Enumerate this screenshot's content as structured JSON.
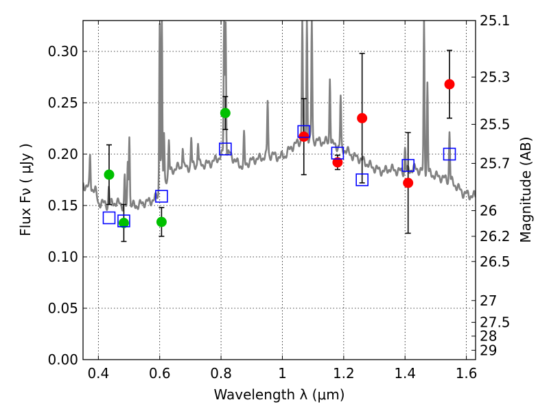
{
  "chart_data": {
    "type": "scatter",
    "title": "",
    "xlabel": "Wavelength  λ (μm)",
    "ylabel": "Flux  Fν  ( μJy )",
    "y2label": "Magnitude (AB)",
    "xlim": [
      0.35,
      1.63
    ],
    "ylim": [
      0.0,
      0.33
    ],
    "grid": true,
    "x_ticks": [
      {
        "value": 0.4,
        "label": "0.4"
      },
      {
        "value": 0.6,
        "label": "0.6"
      },
      {
        "value": 0.8,
        "label": "0.8"
      },
      {
        "value": 1.0,
        "label": "1"
      },
      {
        "value": 1.2,
        "label": "1.2"
      },
      {
        "value": 1.4,
        "label": "1.4"
      },
      {
        "value": 1.6,
        "label": "1.6"
      }
    ],
    "y_ticks": [
      {
        "value": 0.0,
        "label": "0.00"
      },
      {
        "value": 0.05,
        "label": "0.05"
      },
      {
        "value": 0.1,
        "label": "0.10"
      },
      {
        "value": 0.15,
        "label": "0.15"
      },
      {
        "value": 0.2,
        "label": "0.20"
      },
      {
        "value": 0.25,
        "label": "0.25"
      },
      {
        "value": 0.3,
        "label": "0.30"
      }
    ],
    "y2_ticks": [
      {
        "flux": 0.33,
        "label": "25.1"
      },
      {
        "flux": 0.275,
        "label": "25.3"
      },
      {
        "flux": 0.229,
        "label": "25.5"
      },
      {
        "flux": 0.191,
        "label": "25.7"
      },
      {
        "flux": 0.145,
        "label": "26"
      },
      {
        "flux": 0.12,
        "label": "26.2"
      },
      {
        "flux": 0.0955,
        "label": "26.5"
      },
      {
        "flux": 0.0575,
        "label": "27"
      },
      {
        "flux": 0.0363,
        "label": "27.5"
      },
      {
        "flux": 0.0229,
        "label": "28"
      },
      {
        "flux": 0.0091,
        "label": "29"
      }
    ],
    "series": [
      {
        "name": "green",
        "color": "#00c000",
        "marker": "circle",
        "points": [
          {
            "x": 0.435,
            "y": 0.18,
            "err": 0.029
          },
          {
            "x": 0.483,
            "y": 0.133,
            "err": 0.018
          },
          {
            "x": 0.606,
            "y": 0.134,
            "err": 0.014
          },
          {
            "x": 0.814,
            "y": 0.24,
            "err": 0.016
          }
        ]
      },
      {
        "name": "red",
        "color": "#ff0000",
        "marker": "circle",
        "points": [
          {
            "x": 1.07,
            "y": 0.217,
            "err": 0.037
          },
          {
            "x": 1.18,
            "y": 0.192,
            "err": 0.007
          },
          {
            "x": 1.26,
            "y": 0.235,
            "err": 0.063
          },
          {
            "x": 1.41,
            "y": 0.172,
            "err": 0.049
          },
          {
            "x": 1.545,
            "y": 0.268,
            "err": 0.033
          }
        ]
      },
      {
        "name": "model",
        "color": "#0000ff",
        "marker": "square",
        "points": [
          {
            "x": 0.435,
            "y": 0.138
          },
          {
            "x": 0.483,
            "y": 0.135
          },
          {
            "x": 0.606,
            "y": 0.159
          },
          {
            "x": 0.814,
            "y": 0.205
          },
          {
            "x": 1.07,
            "y": 0.222
          },
          {
            "x": 1.18,
            "y": 0.201
          },
          {
            "x": 1.26,
            "y": 0.175
          },
          {
            "x": 1.41,
            "y": 0.189
          },
          {
            "x": 1.545,
            "y": 0.2
          }
        ]
      }
    ],
    "spectrum": {
      "color": "#808080",
      "continuum": [
        [
          0.35,
          0.17
        ],
        [
          0.37,
          0.168
        ],
        [
          0.39,
          0.165
        ],
        [
          0.4,
          0.152
        ],
        [
          0.41,
          0.153
        ],
        [
          0.43,
          0.15
        ],
        [
          0.45,
          0.153
        ],
        [
          0.47,
          0.152
        ],
        [
          0.49,
          0.147
        ],
        [
          0.51,
          0.15
        ],
        [
          0.53,
          0.15
        ],
        [
          0.55,
          0.153
        ],
        [
          0.57,
          0.154
        ],
        [
          0.59,
          0.158
        ],
        [
          0.61,
          0.168
        ],
        [
          0.63,
          0.182
        ],
        [
          0.65,
          0.186
        ],
        [
          0.67,
          0.188
        ],
        [
          0.69,
          0.187
        ],
        [
          0.71,
          0.189
        ],
        [
          0.73,
          0.19
        ],
        [
          0.75,
          0.19
        ],
        [
          0.77,
          0.192
        ],
        [
          0.79,
          0.196
        ],
        [
          0.81,
          0.201
        ],
        [
          0.83,
          0.2
        ],
        [
          0.85,
          0.192
        ],
        [
          0.87,
          0.188
        ],
        [
          0.89,
          0.192
        ],
        [
          0.91,
          0.195
        ],
        [
          0.93,
          0.196
        ],
        [
          0.95,
          0.199
        ],
        [
          0.97,
          0.199
        ],
        [
          0.99,
          0.197
        ],
        [
          1.01,
          0.199
        ],
        [
          1.03,
          0.207
        ],
        [
          1.05,
          0.211
        ],
        [
          1.07,
          0.215
        ],
        [
          1.09,
          0.214
        ],
        [
          1.11,
          0.213
        ],
        [
          1.13,
          0.212
        ],
        [
          1.15,
          0.212
        ],
        [
          1.17,
          0.209
        ],
        [
          1.19,
          0.206
        ],
        [
          1.21,
          0.203
        ],
        [
          1.23,
          0.198
        ],
        [
          1.25,
          0.196
        ],
        [
          1.27,
          0.192
        ],
        [
          1.29,
          0.188
        ],
        [
          1.31,
          0.185
        ],
        [
          1.33,
          0.183
        ],
        [
          1.35,
          0.186
        ],
        [
          1.37,
          0.184
        ],
        [
          1.39,
          0.183
        ],
        [
          1.41,
          0.184
        ],
        [
          1.43,
          0.186
        ],
        [
          1.45,
          0.184
        ],
        [
          1.47,
          0.182
        ],
        [
          1.49,
          0.18
        ],
        [
          1.51,
          0.178
        ],
        [
          1.53,
          0.176
        ],
        [
          1.55,
          0.174
        ],
        [
          1.57,
          0.168
        ],
        [
          1.59,
          0.162
        ],
        [
          1.61,
          0.16
        ],
        [
          1.63,
          0.159
        ]
      ],
      "emission_lines": [
        {
          "x": 0.373,
          "peak": 0.198
        },
        {
          "x": 0.434,
          "peak": 0.168
        },
        {
          "x": 0.486,
          "peak": 0.178
        },
        {
          "x": 0.496,
          "peak": 0.192
        },
        {
          "x": 0.501,
          "peak": 0.22
        },
        {
          "x": 0.6,
          "peak": 0.33
        },
        {
          "x": 0.607,
          "peak": 0.33
        },
        {
          "x": 0.614,
          "peak": 0.22
        },
        {
          "x": 0.63,
          "peak": 0.212
        },
        {
          "x": 0.675,
          "peak": 0.208
        },
        {
          "x": 0.703,
          "peak": 0.215
        },
        {
          "x": 0.725,
          "peak": 0.212
        },
        {
          "x": 0.81,
          "peak": 0.33
        },
        {
          "x": 0.815,
          "peak": 0.33
        },
        {
          "x": 0.875,
          "peak": 0.218
        },
        {
          "x": 0.952,
          "peak": 0.252
        },
        {
          "x": 1.065,
          "peak": 0.33
        },
        {
          "x": 1.08,
          "peak": 0.33
        },
        {
          "x": 1.096,
          "peak": 0.33
        },
        {
          "x": 1.155,
          "peak": 0.276
        },
        {
          "x": 1.19,
          "peak": 0.255
        },
        {
          "x": 1.4,
          "peak": 0.206
        },
        {
          "x": 1.462,
          "peak": 0.33
        },
        {
          "x": 1.473,
          "peak": 0.27
        },
        {
          "x": 1.545,
          "peak": 0.222
        }
      ]
    }
  }
}
